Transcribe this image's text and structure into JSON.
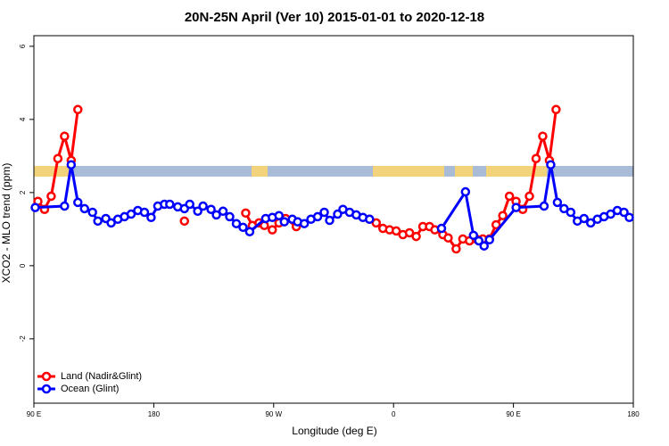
{
  "chart_data": {
    "type": "line",
    "title": "20N-25N April (Ver 10)   2015-01-01 to 2020-12-18",
    "x_label": "Longitude (deg E)",
    "y_label": "XCO2 - MLO trend (ppm)",
    "xlim": [
      90,
      540
    ],
    "xticks": [
      {
        "value": 90,
        "label": "90 E"
      },
      180,
      {
        "value": 270,
        "label": "90 W"
      },
      {
        "value": 360,
        "label": "0"
      },
      {
        "value": 450,
        "label": "90 E"
      },
      {
        "value": 540,
        "label": "180"
      }
    ],
    "ylim": [
      -3.76,
      6.29
    ],
    "yticks": [
      -2,
      0,
      2,
      4,
      6
    ],
    "legend": "bottom-left",
    "series": [
      {
        "name": "Land (Nadir&Glint)",
        "color": "#ff0000",
        "x": [
          93,
          98,
          103,
          108,
          113,
          118,
          123,
          null,
          203,
          null,
          249,
          254,
          259,
          263,
          269,
          274,
          279,
          287,
          null,
          342,
          347,
          352,
          357,
          362,
          367,
          372,
          377,
          382,
          387,
          391,
          397,
          401,
          407,
          412,
          417,
          422,
          427,
          432,
          437,
          442,
          447,
          452,
          457,
          462,
          467,
          472,
          477,
          482
        ],
        "values": [
          1.76,
          1.54,
          1.9,
          2.93,
          3.54,
          2.88,
          4.27,
          null,
          1.22,
          null,
          1.44,
          1.1,
          1.17,
          1.1,
          0.98,
          1.17,
          1.29,
          1.07,
          null,
          1.27,
          1.17,
          1.02,
          0.98,
          0.95,
          0.85,
          0.9,
          0.8,
          1.07,
          1.07,
          0.98,
          0.85,
          0.76,
          0.46,
          0.73,
          0.68,
          0.73,
          0.73,
          0.73,
          1.12,
          1.37,
          1.9,
          1.76,
          1.54,
          1.9,
          2.93,
          3.54,
          2.88,
          4.27
        ]
      },
      {
        "name": "Ocean (Glint)",
        "color": "#0000ff",
        "x": [
          91,
          113,
          118,
          123,
          128,
          134,
          138,
          144,
          148,
          153,
          158,
          163,
          168,
          173,
          178,
          183,
          188,
          192,
          198,
          203,
          207,
          213,
          217,
          223,
          227,
          232,
          237,
          242,
          247,
          252,
          264,
          269,
          274,
          278,
          284,
          288,
          293,
          298,
          303,
          308,
          312,
          318,
          322,
          327,
          332,
          337,
          342,
          null,
          396,
          414,
          420,
          424,
          428,
          432,
          452,
          473,
          478,
          483,
          488,
          493,
          498,
          503,
          508,
          513,
          518,
          523,
          528,
          533,
          537
        ],
        "values": [
          1.59,
          1.63,
          2.76,
          1.73,
          1.56,
          1.46,
          1.22,
          1.29,
          1.17,
          1.27,
          1.34,
          1.41,
          1.51,
          1.46,
          1.32,
          1.63,
          1.68,
          1.68,
          1.61,
          1.56,
          1.68,
          1.49,
          1.63,
          1.54,
          1.39,
          1.49,
          1.34,
          1.15,
          1.05,
          0.93,
          1.29,
          1.32,
          1.37,
          1.2,
          1.27,
          1.2,
          1.15,
          1.27,
          1.34,
          1.46,
          1.24,
          1.41,
          1.54,
          1.46,
          1.39,
          1.32,
          1.27,
          null,
          1.02,
          2.02,
          0.83,
          0.68,
          0.54,
          0.71,
          1.59,
          1.63,
          2.76,
          1.73,
          1.56,
          1.46,
          1.22,
          1.29,
          1.17,
          1.27,
          1.34,
          1.41,
          1.51,
          1.46,
          1.32
        ]
      }
    ]
  }
}
